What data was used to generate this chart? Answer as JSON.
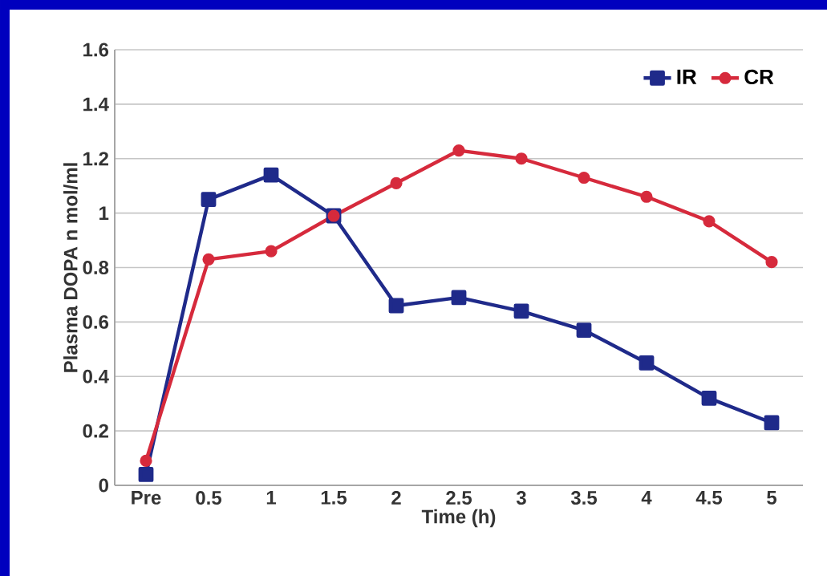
{
  "chart_data": {
    "type": "line",
    "xlabel": "Time (h)",
    "ylabel": "Plasma DOPA n mol/ml",
    "categories": [
      "Pre",
      "0.5",
      "1",
      "1.5",
      "2",
      "2.5",
      "3",
      "3.5",
      "4",
      "4.5",
      "5"
    ],
    "series": [
      {
        "name": "IR",
        "color": "#1f2a8a",
        "marker": "square",
        "values": [
          0.04,
          1.05,
          1.14,
          0.99,
          0.66,
          0.69,
          0.64,
          0.57,
          0.45,
          0.32,
          0.23
        ]
      },
      {
        "name": "CR",
        "color": "#d62a3c",
        "marker": "circle",
        "values": [
          0.09,
          0.83,
          0.86,
          0.99,
          1.11,
          1.23,
          1.2,
          1.13,
          1.06,
          0.97,
          0.82
        ]
      }
    ],
    "ylim": [
      0,
      1.6
    ],
    "yticks": [
      0,
      0.2,
      0.4,
      0.6,
      0.8,
      1,
      1.2,
      1.4,
      1.6
    ],
    "grid": "y",
    "legend": "top right",
    "line_style": "solid"
  }
}
